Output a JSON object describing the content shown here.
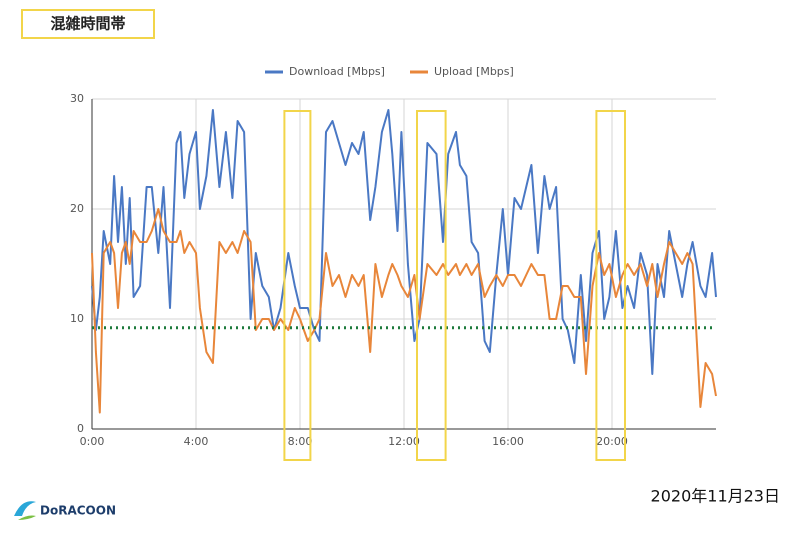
{
  "header": {
    "label": "混雑時間帯"
  },
  "chart_data": {
    "type": "line",
    "x": [
      0,
      0.15,
      0.3,
      0.45,
      0.7,
      0.85,
      1,
      1.15,
      1.3,
      1.45,
      1.6,
      1.85,
      2.1,
      2.3,
      2.55,
      2.75,
      3,
      3.25,
      3.4,
      3.55,
      3.75,
      4,
      4.15,
      4.4,
      4.65,
      4.9,
      5.15,
      5.4,
      5.6,
      5.85,
      6.1,
      6.3,
      6.55,
      6.8,
      7,
      7.25,
      7.55,
      7.8,
      8,
      8.3,
      8.55,
      8.75,
      9,
      9.25,
      9.5,
      9.75,
      10,
      10.25,
      10.45,
      10.7,
      10.9,
      11.15,
      11.4,
      11.55,
      11.75,
      11.9,
      12.15,
      12.4,
      12.6,
      12.9,
      13.25,
      13.5,
      13.7,
      14,
      14.15,
      14.4,
      14.6,
      14.85,
      15.1,
      15.3,
      15.55,
      15.8,
      16,
      16.25,
      16.5,
      16.7,
      16.9,
      17.15,
      17.4,
      17.6,
      17.85,
      18.1,
      18.3,
      18.55,
      18.8,
      19,
      19.25,
      19.5,
      19.7,
      19.9,
      20.15,
      20.4,
      20.6,
      20.85,
      21.1,
      21.35,
      21.55,
      21.75,
      22,
      22.2,
      22.45,
      22.7,
      22.9,
      23.1,
      23.4,
      23.6,
      23.85,
      24
    ],
    "series": [
      {
        "name": "Download [Mbps]",
        "color": "#4a78c4",
        "values": [
          13,
          9,
          12,
          18,
          15,
          23,
          17,
          22,
          15,
          21,
          12,
          13,
          22,
          22,
          16,
          22,
          11,
          26,
          27,
          21,
          25,
          27,
          20,
          23,
          29,
          22,
          27,
          21,
          28,
          27,
          10,
          16,
          13,
          12,
          9,
          11,
          16,
          13,
          11,
          11,
          9,
          8,
          27,
          28,
          26,
          24,
          26,
          25,
          27,
          19,
          22,
          27,
          29,
          25,
          18,
          27,
          15,
          8,
          10,
          26,
          25,
          17,
          25,
          27,
          24,
          23,
          17,
          16,
          8,
          7,
          14,
          20,
          14,
          21,
          20,
          22,
          24,
          16,
          23,
          20,
          22,
          10,
          9,
          6,
          14,
          8,
          16,
          18,
          10,
          12,
          18,
          11,
          13,
          11,
          16,
          14,
          5,
          15,
          12,
          18,
          15,
          12,
          15,
          17,
          13,
          12,
          16,
          12
        ]
      },
      {
        "name": "Upload [Mbps]",
        "color": "#e8863a",
        "values": [
          16,
          7,
          1.5,
          16,
          17,
          16,
          11,
          16,
          17,
          15,
          18,
          17,
          17,
          18,
          20,
          18,
          17,
          17,
          18,
          16,
          17,
          16,
          11,
          7,
          6,
          17,
          16,
          17,
          16,
          18,
          17,
          9,
          10,
          10,
          9,
          10,
          9,
          11,
          10,
          8,
          9,
          10,
          16,
          13,
          14,
          12,
          14,
          13,
          14,
          7,
          15,
          12,
          14,
          15,
          14,
          13,
          12,
          14,
          10,
          15,
          14,
          15,
          14,
          15,
          14,
          15,
          14,
          15,
          12,
          13,
          14,
          13,
          14,
          14,
          13,
          14,
          15,
          14,
          14,
          10,
          10,
          13,
          13,
          12,
          12,
          5,
          13,
          16,
          14,
          15,
          12,
          14,
          15,
          14,
          15,
          13,
          15,
          12,
          15,
          17,
          16,
          15,
          16,
          15,
          2,
          6,
          5,
          3
        ]
      }
    ],
    "xlim": [
      0,
      24
    ],
    "xticks": [
      {
        "value": 0,
        "label": "0:00"
      },
      {
        "value": 4,
        "label": "4:00"
      },
      {
        "value": 8,
        "label": "8:00"
      },
      {
        "value": 12,
        "label": "12:00"
      },
      {
        "value": 16,
        "label": "16:00"
      },
      {
        "value": 20,
        "label": "20:00"
      }
    ],
    "ylim": [
      0,
      30
    ],
    "yticks": [
      0,
      10,
      20,
      30
    ],
    "grid": true,
    "legend": "top",
    "threshold": 9.2,
    "threshold_color": "#1d7a3c",
    "highlights": [
      [
        7.4,
        8.4
      ],
      [
        12.5,
        13.6
      ],
      [
        19.4,
        20.5
      ]
    ],
    "highlight_color": "#f2d54a"
  },
  "footer": {
    "logo": "DoRACOON",
    "date": "2020年11月23日"
  }
}
